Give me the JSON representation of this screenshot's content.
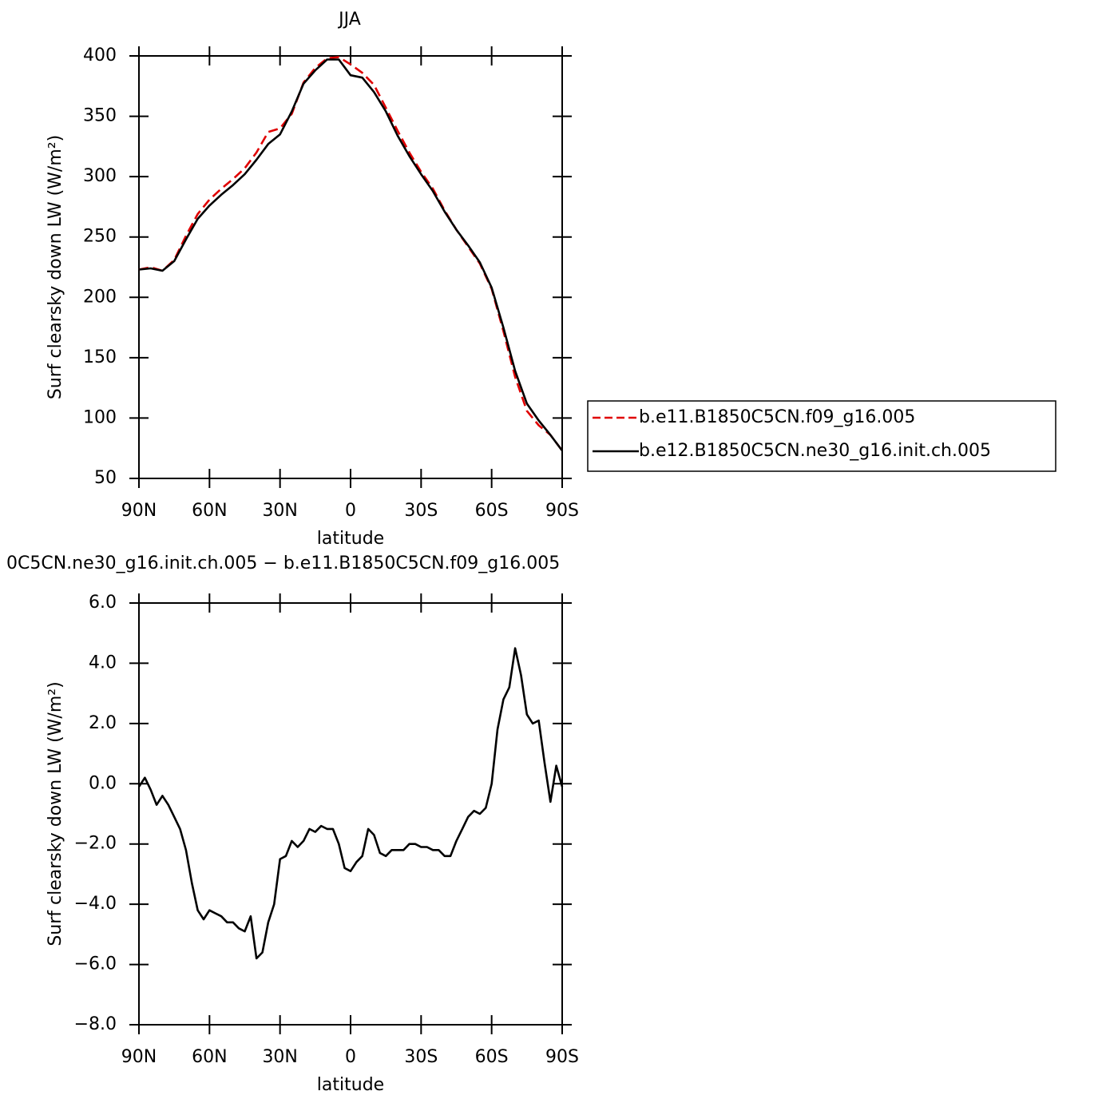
{
  "chart_data": [
    {
      "type": "line",
      "title": "JJA",
      "xlabel": "latitude",
      "ylabel": "Surf clearsky down LW (W/m²)",
      "x": [
        90,
        85,
        80,
        75,
        70,
        65,
        60,
        55,
        50,
        45,
        40,
        35,
        30,
        25,
        20,
        15,
        10,
        5,
        0,
        -5,
        -10,
        -15,
        -20,
        -25,
        -30,
        -35,
        -40,
        -45,
        -50,
        -55,
        -60,
        -65,
        -70,
        -75,
        -80,
        -85,
        -90
      ],
      "series": [
        {
          "name": "b.e11.B1850C5CN.f09_g16.005",
          "color": "#e00000",
          "line_style": "dashed",
          "values": [
            223,
            225,
            222,
            231,
            251,
            269,
            281,
            290,
            298,
            307,
            320,
            337,
            340,
            352,
            378,
            390,
            398,
            399,
            393,
            386,
            376,
            357,
            338,
            320,
            304,
            290,
            272,
            256,
            242,
            228,
            207,
            172,
            134,
            106,
            94,
            86,
            73
          ]
        },
        {
          "name": "b.e12.B1850C5CN.ne30_g16.init.ch.005",
          "color": "#000000",
          "line_style": "solid",
          "values": [
            223,
            224,
            222,
            230,
            248,
            265,
            276,
            285,
            293,
            302,
            314,
            327,
            335,
            354,
            377,
            388,
            397,
            397,
            384,
            382,
            370,
            354,
            334,
            317,
            302,
            288,
            271,
            256,
            243,
            229,
            208,
            175,
            139,
            112,
            98,
            86,
            73
          ]
        }
      ],
      "xlim": [
        90,
        -90
      ],
      "xticks": [
        {
          "value": 90,
          "label": "90N"
        },
        {
          "value": 60,
          "label": "60N"
        },
        {
          "value": 30,
          "label": "30N"
        },
        0,
        {
          "value": -30,
          "label": "30S"
        },
        {
          "value": -60,
          "label": "60S"
        },
        {
          "value": -90,
          "label": "90S"
        }
      ],
      "ylim": [
        50,
        400
      ],
      "yticks": [
        50,
        100,
        150,
        200,
        250,
        300,
        350,
        400
      ],
      "legend": "outside-right"
    },
    {
      "type": "line",
      "title": "0C5CN.ne30_g16.init.ch.005 − b.e11.B1850C5CN.f09_g16.005",
      "xlabel": "latitude",
      "ylabel": "Surf clearsky down LW (W/m²)",
      "x": [
        90,
        87.5,
        85,
        82.5,
        80,
        77.5,
        75,
        72.5,
        70,
        67.5,
        65,
        62.5,
        60,
        57.5,
        55,
        52.5,
        50,
        47.5,
        45,
        42.5,
        40,
        37.5,
        35,
        32.5,
        30,
        27.5,
        25,
        22.5,
        20,
        17.5,
        15,
        12.5,
        10,
        7.5,
        5,
        2.5,
        0,
        -2.5,
        -5,
        -7.5,
        -10,
        -12.5,
        -15,
        -17.5,
        -20,
        -22.5,
        -25,
        -27.5,
        -30,
        -32.5,
        -35,
        -37.5,
        -40,
        -42.5,
        -45,
        -47.5,
        -50,
        -52.5,
        -55,
        -57.5,
        -60,
        -62.5,
        -65,
        -67.5,
        -70,
        -72.5,
        -75,
        -77.5,
        -80,
        -82.5,
        -85,
        -87.5,
        -90
      ],
      "series": [
        {
          "color": "#000000",
          "line_style": "solid",
          "values": [
            -0.1,
            0.2,
            -0.2,
            -0.7,
            -0.4,
            -0.7,
            -1.1,
            -1.5,
            -2.2,
            -3.3,
            -4.2,
            -4.5,
            -4.2,
            -4.3,
            -4.4,
            -4.6,
            -4.6,
            -4.8,
            -4.9,
            -4.4,
            -5.8,
            -5.6,
            -4.6,
            -4.0,
            -2.5,
            -2.4,
            -1.9,
            -2.1,
            -1.9,
            -1.5,
            -1.6,
            -1.4,
            -1.5,
            -1.5,
            -2.0,
            -2.8,
            -2.9,
            -2.6,
            -2.4,
            -1.5,
            -1.7,
            -2.3,
            -2.4,
            -2.2,
            -2.2,
            -2.2,
            -2.0,
            -2.0,
            -2.1,
            -2.1,
            -2.2,
            -2.2,
            -2.4,
            -2.4,
            -1.9,
            -1.5,
            -1.1,
            -0.9,
            -1.0,
            -0.8,
            0.0,
            1.8,
            2.8,
            3.2,
            4.5,
            3.6,
            2.3,
            2.0,
            2.1,
            0.7,
            -0.6,
            0.6,
            -0.1
          ]
        }
      ],
      "xlim": [
        90,
        -90
      ],
      "xticks": [
        {
          "value": 90,
          "label": "90N"
        },
        {
          "value": 60,
          "label": "60N"
        },
        {
          "value": 30,
          "label": "30N"
        },
        0,
        {
          "value": -30,
          "label": "30S"
        },
        {
          "value": -60,
          "label": "60S"
        },
        {
          "value": -90,
          "label": "90S"
        }
      ],
      "ylim": [
        -8,
        6
      ],
      "yticks": [
        {
          "value": -8,
          "label": "−8.0"
        },
        {
          "value": -6,
          "label": "−6.0"
        },
        {
          "value": -4,
          "label": "−4.0"
        },
        {
          "value": -2,
          "label": "−2.0"
        },
        {
          "value": 0,
          "label": "0.0"
        },
        {
          "value": 2,
          "label": "2.0"
        },
        {
          "value": 4,
          "label": "4.0"
        },
        {
          "value": 6,
          "label": "6.0"
        }
      ]
    }
  ]
}
